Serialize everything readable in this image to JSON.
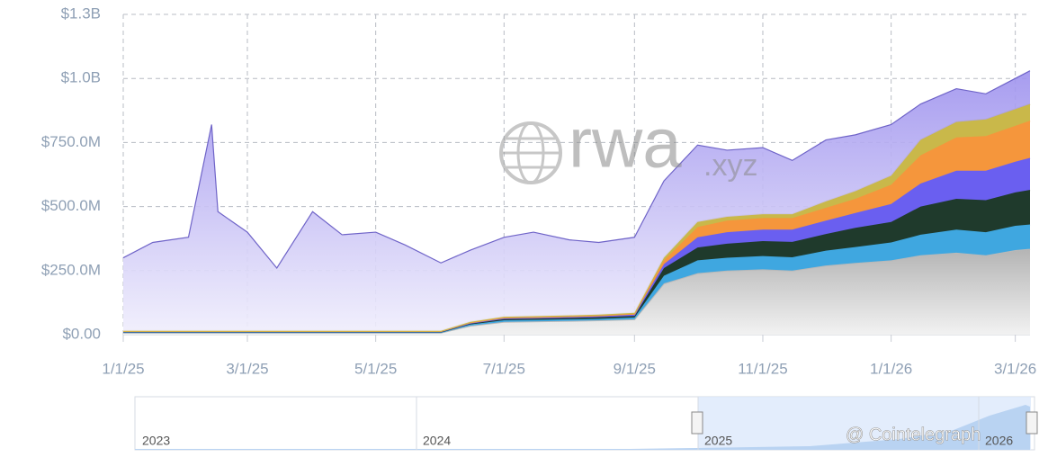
{
  "chart_data": {
    "type": "stacked_area",
    "x": [
      "2025-01-01",
      "2025-01-15",
      "2025-02-01",
      "2025-02-12",
      "2025-02-15",
      "2025-03-01",
      "2025-03-15",
      "2025-04-01",
      "2025-04-15",
      "2025-05-01",
      "2025-05-15",
      "2025-06-01",
      "2025-06-15",
      "2025-07-01",
      "2025-07-15",
      "2025-08-01",
      "2025-08-15",
      "2025-09-01",
      "2025-09-15",
      "2025-10-01",
      "2025-10-15",
      "2025-11-01",
      "2025-11-15",
      "2025-12-01",
      "2025-12-15",
      "2026-01-01",
      "2026-01-15",
      "2026-02-01",
      "2026-02-15",
      "2026-03-01",
      "2026-03-08"
    ],
    "series": [
      {
        "color": "#b9b9b9",
        "values": [
          8,
          8,
          8,
          8,
          8,
          8,
          8,
          8,
          8,
          8,
          8,
          8,
          35,
          50,
          52,
          54,
          56,
          60,
          200,
          240,
          250,
          255,
          250,
          270,
          280,
          290,
          310,
          320,
          310,
          330,
          335
        ]
      },
      {
        "color": "#3fa7e0",
        "values": [
          2,
          2,
          2,
          2,
          2,
          2,
          2,
          2,
          2,
          2,
          2,
          2,
          5,
          6,
          6,
          6,
          6,
          7,
          30,
          50,
          50,
          52,
          52,
          58,
          62,
          70,
          80,
          90,
          90,
          95,
          95
        ]
      },
      {
        "color": "#1f3a2c",
        "values": [
          2,
          2,
          2,
          2,
          2,
          2,
          2,
          2,
          2,
          2,
          2,
          2,
          4,
          5,
          5,
          5,
          6,
          6,
          30,
          50,
          55,
          58,
          60,
          65,
          75,
          80,
          110,
          120,
          125,
          130,
          135
        ]
      },
      {
        "color": "#6a5ff0",
        "values": [
          1,
          1,
          1,
          1,
          1,
          1,
          1,
          1,
          1,
          1,
          1,
          1,
          2,
          3,
          3,
          4,
          4,
          5,
          15,
          40,
          45,
          45,
          48,
          52,
          58,
          70,
          90,
          110,
          115,
          120,
          125
        ]
      },
      {
        "color": "#f5963c",
        "values": [
          1,
          1,
          1,
          1,
          1,
          1,
          1,
          1,
          1,
          1,
          1,
          1,
          2,
          3,
          3,
          3,
          3,
          4,
          15,
          40,
          45,
          45,
          45,
          50,
          55,
          75,
          110,
          130,
          135,
          140,
          145
        ]
      },
      {
        "color": "#c9b84a",
        "values": [
          1,
          1,
          1,
          1,
          1,
          1,
          1,
          1,
          1,
          1,
          1,
          1,
          2,
          3,
          3,
          3,
          3,
          3,
          10,
          20,
          15,
          15,
          15,
          25,
          30,
          35,
          60,
          60,
          65,
          65,
          65
        ]
      },
      {
        "color": "#a89ef0",
        "values": [
          285,
          345,
          365,
          805,
          465,
          385,
          245,
          465,
          375,
          385,
          335,
          265,
          280,
          310,
          328,
          295,
          282,
          295,
          300,
          300,
          260,
          260,
          210,
          240,
          220,
          200,
          140,
          130,
          100,
          120,
          130
        ]
      }
    ],
    "xlim": [
      "2025-01-01",
      "2026-03-08"
    ],
    "xticks": [
      {
        "value": "2025-01-01",
        "label": "1/1/25"
      },
      {
        "value": "2025-03-01",
        "label": "3/1/25"
      },
      {
        "value": "2025-05-01",
        "label": "5/1/25"
      },
      {
        "value": "2025-07-01",
        "label": "7/1/25"
      },
      {
        "value": "2025-09-01",
        "label": "9/1/25"
      },
      {
        "value": "2025-11-01",
        "label": "11/1/25"
      },
      {
        "value": "2026-01-01",
        "label": "1/1/26"
      },
      {
        "value": "2026-03-01",
        "label": "3/1/26"
      }
    ],
    "ylim": [
      0,
      1250
    ],
    "yticks": [
      {
        "value": 0,
        "label": "$0.00"
      },
      {
        "value": 250,
        "label": "$250.0M"
      },
      {
        "value": 500,
        "label": "$500.0M"
      },
      {
        "value": 750,
        "label": "$750.0M"
      },
      {
        "value": 1000,
        "label": "$1.0B"
      },
      {
        "value": 1250,
        "label": "$1.3B"
      }
    ],
    "grid": true,
    "watermark": {
      "name": "rwa",
      "suffix": ".xyz"
    },
    "navigator": {
      "labels": [
        "2023",
        "2024",
        "2025",
        "2026"
      ]
    },
    "credit": "@ Cointelegraph"
  }
}
